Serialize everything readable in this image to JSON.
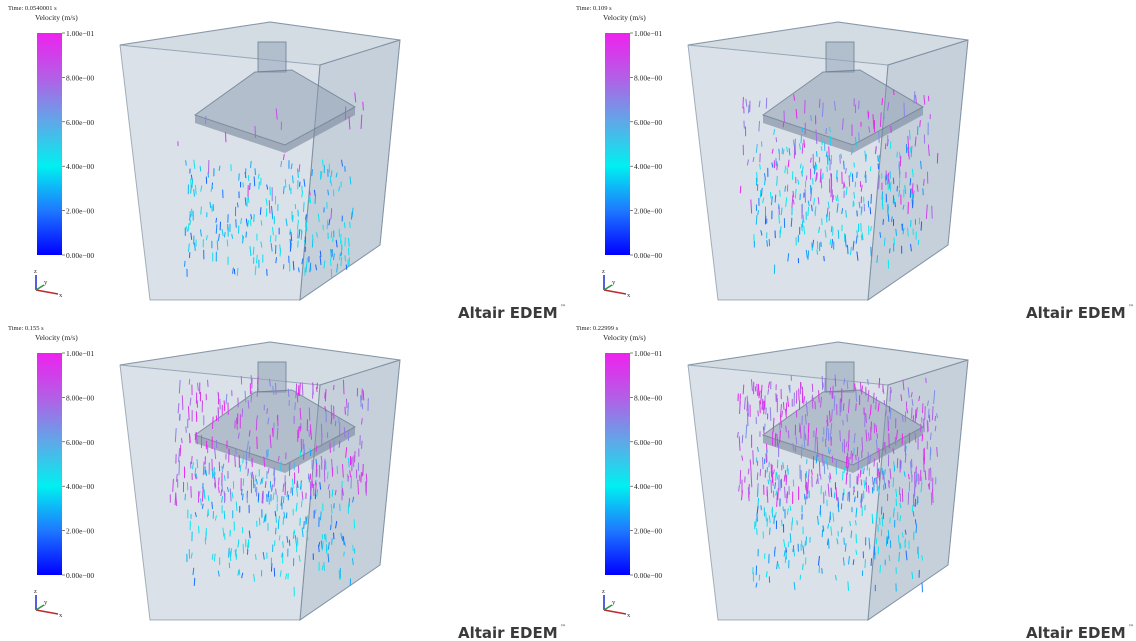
{
  "panels": [
    {
      "time": "Time: 0.0540001 s",
      "legend_title": "Velocity (m/s)",
      "legend_labels": [
        "1.00e−01",
        "8.00e−00",
        "6.00e−00",
        "4.00e−00",
        "2.00e−00",
        "0.00e−00"
      ],
      "axes": [
        "z",
        "y",
        "x"
      ],
      "brand": "Altair EDEM",
      "trademark": "™"
    },
    {
      "time": "Time: 0.109 s",
      "legend_title": "Velocity (m/s)",
      "legend_labels": [
        "1.00e−01",
        "8.00e−00",
        "6.00e−00",
        "4.00e−00",
        "2.00e−00",
        "0.00e−00"
      ],
      "axes": [
        "z",
        "y",
        "x"
      ],
      "brand": "Altair EDEM",
      "trademark": "™"
    },
    {
      "time": "Time: 0.155 s",
      "legend_title": "Velocity (m/s)",
      "legend_labels": [
        "1.00e−01",
        "8.00e−00",
        "6.00e−00",
        "4.00e−00",
        "2.00e−00",
        "0.00e−00"
      ],
      "axes": [
        "z",
        "y",
        "x"
      ],
      "brand": "Altair EDEM",
      "trademark": "™"
    },
    {
      "time": "Time: 0.22999 s",
      "legend_title": "Velocity (m/s)",
      "legend_labels": [
        "1.00e−01",
        "8.00e−00",
        "6.00e−00",
        "4.00e−00",
        "2.00e−00",
        "0.00e−00"
      ],
      "axes": [
        "z",
        "y",
        "x"
      ],
      "brand": "Altair EDEM",
      "trademark": "™"
    }
  ]
}
